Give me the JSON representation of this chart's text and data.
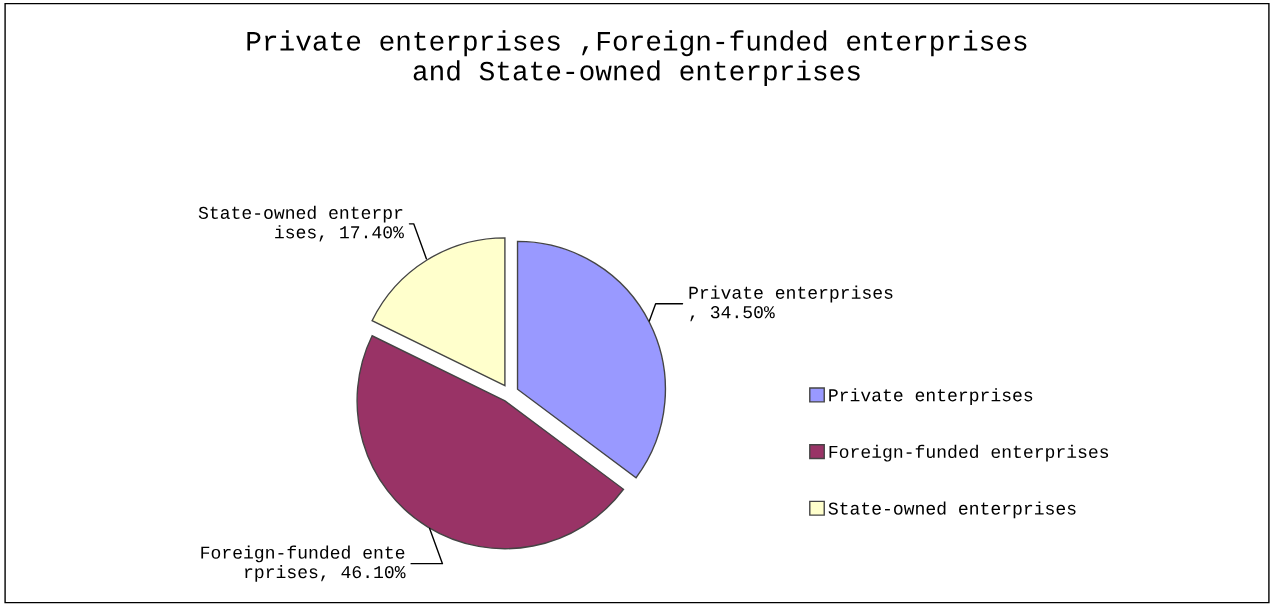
{
  "chart_data": {
    "type": "pie",
    "title": "Private enterprises ,Foreign-funded enterprises\nand State-owned enterprises",
    "categories": [
      "Private enterprises",
      "Foreign-funded enterprises",
      "State-owned enterprises"
    ],
    "values": [
      34.5,
      46.1,
      17.4
    ],
    "colors": [
      "#9999ff",
      "#993366",
      "#ffffcc"
    ],
    "value_labels": [
      "Private enterprises\n, 34.50%",
      "Foreign-funded ente\nrprises, 46.10%",
      "State-owned enterpr\nises, 17.40%"
    ],
    "legend": "right"
  }
}
